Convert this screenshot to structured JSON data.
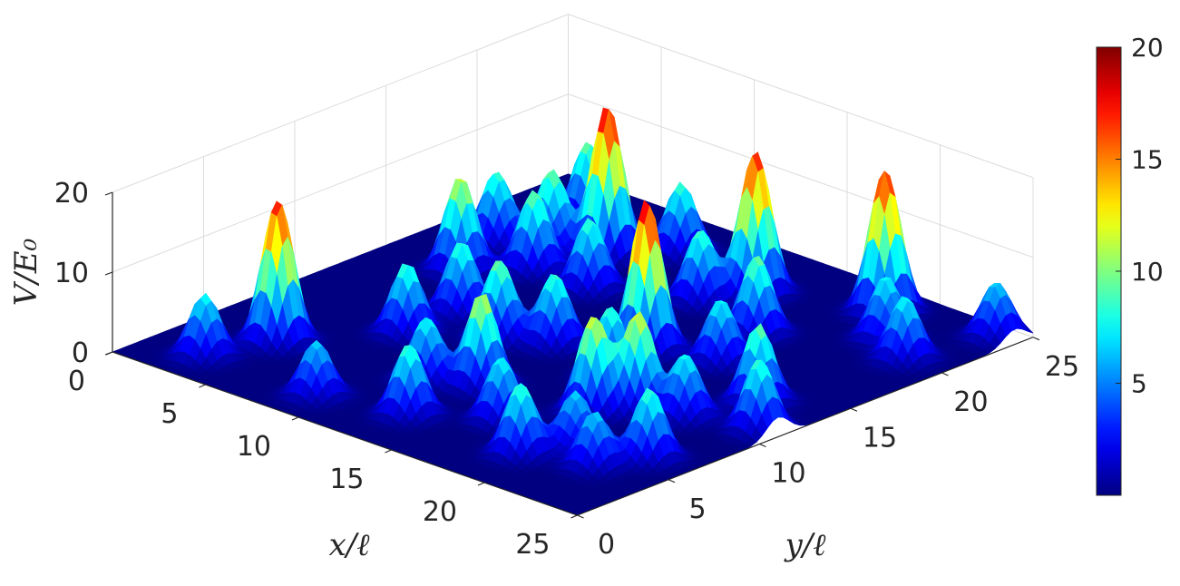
{
  "chart_data": {
    "type": "surface",
    "xlabel": "x/ℓ",
    "ylabel": "y/ℓ",
    "zlabel": "V/E₀",
    "xlim": [
      0,
      25
    ],
    "ylim": [
      0,
      25
    ],
    "zlim": [
      0,
      20
    ],
    "x_ticks": [
      {
        "value": 0,
        "label": "0"
      },
      {
        "value": 5,
        "label": "5"
      },
      {
        "value": 10,
        "label": "10"
      },
      {
        "value": 15,
        "label": "15"
      },
      {
        "value": 20,
        "label": "20"
      },
      {
        "value": 25,
        "label": "25"
      }
    ],
    "y_ticks": [
      {
        "value": 0,
        "label": "0"
      },
      {
        "value": 5,
        "label": "5"
      },
      {
        "value": 10,
        "label": "10"
      },
      {
        "value": 15,
        "label": "15"
      },
      {
        "value": 20,
        "label": "20"
      },
      {
        "value": 25,
        "label": "25"
      }
    ],
    "z_ticks": [
      {
        "value": 0,
        "label": "0"
      },
      {
        "value": 10,
        "label": "10"
      },
      {
        "value": 20,
        "label": "20"
      }
    ],
    "colorbar": {
      "colormap": "jet",
      "limits": [
        0,
        20
      ],
      "ticks": [
        {
          "value": 5,
          "label": "5"
        },
        {
          "value": 10,
          "label": "10"
        },
        {
          "value": 15,
          "label": "15"
        },
        {
          "value": 20,
          "label": "20"
        }
      ]
    },
    "grid": true,
    "peaks": [
      {
        "x": 3,
        "y": 2,
        "height": 8
      },
      {
        "x": 4,
        "y": 5,
        "height": 18
      },
      {
        "x": 9,
        "y": 2,
        "height": 7
      },
      {
        "x": 11,
        "y": 6,
        "height": 8
      },
      {
        "x": 13,
        "y": 3,
        "height": 9
      },
      {
        "x": 7,
        "y": 9,
        "height": 9
      },
      {
        "x": 13,
        "y": 7,
        "height": 12
      },
      {
        "x": 16,
        "y": 5,
        "height": 8
      },
      {
        "x": 19,
        "y": 3,
        "height": 9
      },
      {
        "x": 20,
        "y": 5,
        "height": 7
      },
      {
        "x": 22,
        "y": 4,
        "height": 7
      },
      {
        "x": 23,
        "y": 6,
        "height": 9
      },
      {
        "x": 18,
        "y": 8,
        "height": 12
      },
      {
        "x": 19,
        "y": 9.5,
        "height": 12
      },
      {
        "x": 7,
        "y": 12,
        "height": 9
      },
      {
        "x": 10,
        "y": 11,
        "height": 10
      },
      {
        "x": 12,
        "y": 12,
        "height": 9
      },
      {
        "x": 16,
        "y": 11,
        "height": 9
      },
      {
        "x": 21,
        "y": 10,
        "height": 8
      },
      {
        "x": 22,
        "y": 13,
        "height": 10
      },
      {
        "x": 24,
        "y": 11,
        "height": 9
      },
      {
        "x": 4,
        "y": 15,
        "height": 12
      },
      {
        "x": 6,
        "y": 17,
        "height": 10
      },
      {
        "x": 9,
        "y": 17,
        "height": 9
      },
      {
        "x": 15,
        "y": 14,
        "height": 19
      },
      {
        "x": 18,
        "y": 15,
        "height": 8
      },
      {
        "x": 3,
        "y": 18,
        "height": 9
      },
      {
        "x": 5,
        "y": 19,
        "height": 10
      },
      {
        "x": 7,
        "y": 20,
        "height": 19
      },
      {
        "x": 4,
        "y": 22,
        "height": 10
      },
      {
        "x": 9,
        "y": 22,
        "height": 9
      },
      {
        "x": 13,
        "y": 19,
        "height": 9
      },
      {
        "x": 17,
        "y": 18,
        "height": 10
      },
      {
        "x": 14,
        "y": 21,
        "height": 18
      },
      {
        "x": 19,
        "y": 23,
        "height": 18
      },
      {
        "x": 21,
        "y": 21,
        "height": 8
      },
      {
        "x": 23,
        "y": 20,
        "height": 8
      },
      {
        "x": 24,
        "y": 24,
        "height": 7
      }
    ]
  }
}
